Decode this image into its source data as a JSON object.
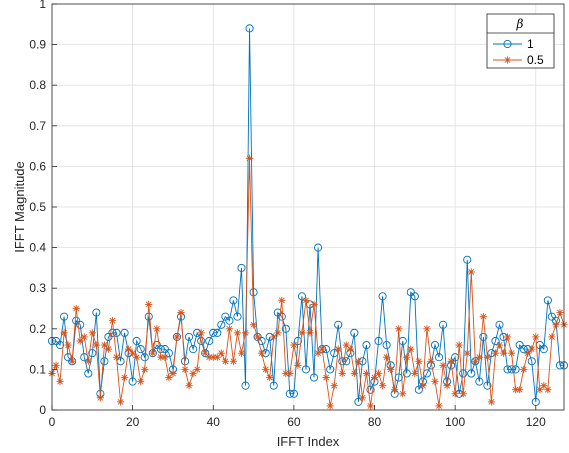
{
  "chart_data": {
    "type": "line",
    "xlabel": "IFFT Index",
    "ylabel": "IFFT Magnitude",
    "xlim": [
      0,
      127
    ],
    "ylim": [
      0,
      1
    ],
    "xticks": [
      0,
      20,
      40,
      60,
      80,
      100,
      120
    ],
    "yticks": [
      0,
      0.1,
      0.2,
      0.3,
      0.4,
      0.5,
      0.6,
      0.7,
      0.8,
      0.9,
      1
    ],
    "grid": true,
    "legend": {
      "title": "β",
      "location": "top-right"
    },
    "series": [
      {
        "name": "1",
        "color": "#0072BD",
        "marker": "circle",
        "values": [
          0.17,
          0.17,
          0.16,
          0.23,
          0.13,
          0.12,
          0.22,
          0.21,
          0.13,
          0.09,
          0.14,
          0.24,
          0.04,
          0.12,
          0.18,
          0.19,
          0.19,
          0.12,
          0.19,
          0.14,
          0.07,
          0.17,
          0.15,
          0.13,
          0.23,
          0.14,
          0.16,
          0.15,
          0.15,
          0.14,
          0.1,
          0.18,
          0.23,
          0.12,
          0.18,
          0.15,
          0.19,
          0.17,
          0.14,
          0.17,
          0.19,
          0.19,
          0.21,
          0.23,
          0.22,
          0.27,
          0.23,
          0.35,
          0.06,
          0.94,
          0.29,
          0.18,
          0.17,
          0.14,
          0.18,
          0.06,
          0.24,
          0.23,
          0.2,
          0.04,
          0.04,
          0.17,
          0.28,
          0.1,
          0.26,
          0.08,
          0.4,
          0.15,
          0.15,
          0.1,
          0.14,
          0.21,
          0.12,
          0.12,
          0.14,
          0.19,
          0.02,
          0.12,
          0.16,
          0.05,
          0.07,
          0.17,
          0.28,
          0.16,
          0.11,
          0.04,
          0.08,
          0.17,
          0.09,
          0.29,
          0.28,
          0.05,
          0.07,
          0.09,
          0.11,
          0.16,
          0.13,
          0.21,
          0.07,
          0.11,
          0.13,
          0.04,
          0.09,
          0.37,
          0.09,
          0.12,
          0.07,
          0.18,
          0.06,
          0.14,
          0.17,
          0.21,
          0.18,
          0.1,
          0.1,
          0.1,
          0.16,
          0.15,
          0.15,
          0.12,
          0.02,
          0.16,
          0.15,
          0.27,
          0.23,
          0.22,
          0.11,
          0.11
        ]
      },
      {
        "name": "0.5",
        "color": "#D95319",
        "marker": "asterisk",
        "values": [
          0.09,
          0.11,
          0.07,
          0.19,
          0.16,
          0.12,
          0.25,
          0.17,
          0.18,
          0.12,
          0.19,
          0.16,
          0.03,
          0.16,
          0.15,
          0.22,
          0.13,
          0.02,
          0.08,
          0.15,
          0.14,
          0.13,
          0.07,
          0.1,
          0.26,
          0.14,
          0.2,
          0.13,
          0.13,
          0.08,
          0.09,
          0.18,
          0.24,
          0.1,
          0.06,
          0.09,
          0.1,
          0.19,
          0.14,
          0.13,
          0.13,
          0.13,
          0.14,
          0.12,
          0.2,
          0.12,
          0.19,
          0.14,
          0.19,
          0.62,
          0.21,
          0.18,
          0.14,
          0.1,
          0.08,
          0.18,
          0.19,
          0.27,
          0.09,
          0.09,
          0.16,
          0.11,
          0.19,
          0.27,
          0.19,
          0.26,
          0.14,
          0.15,
          0.08,
          0.01,
          0.06,
          0.15,
          0.09,
          0.16,
          0.15,
          0.09,
          0.12,
          0.03,
          0.09,
          0.01,
          0.08,
          0.09,
          0.06,
          0.13,
          0.1,
          0.05,
          0.2,
          0.04,
          0.13,
          0.15,
          0.09,
          0.12,
          0.06,
          0.2,
          0.12,
          0.07,
          0.01,
          0.11,
          0.06,
          0.12,
          0.04,
          0.16,
          0.04,
          0.14,
          0.34,
          0.12,
          0.13,
          0.23,
          0.13,
          0.02,
          0.14,
          0.16,
          0.14,
          0.18,
          0.14,
          0.05,
          0.05,
          0.1,
          0.14,
          0.15,
          0.18,
          0.05,
          0.06,
          0.05,
          0.18,
          0.21,
          0.24,
          0.21
        ]
      }
    ]
  }
}
